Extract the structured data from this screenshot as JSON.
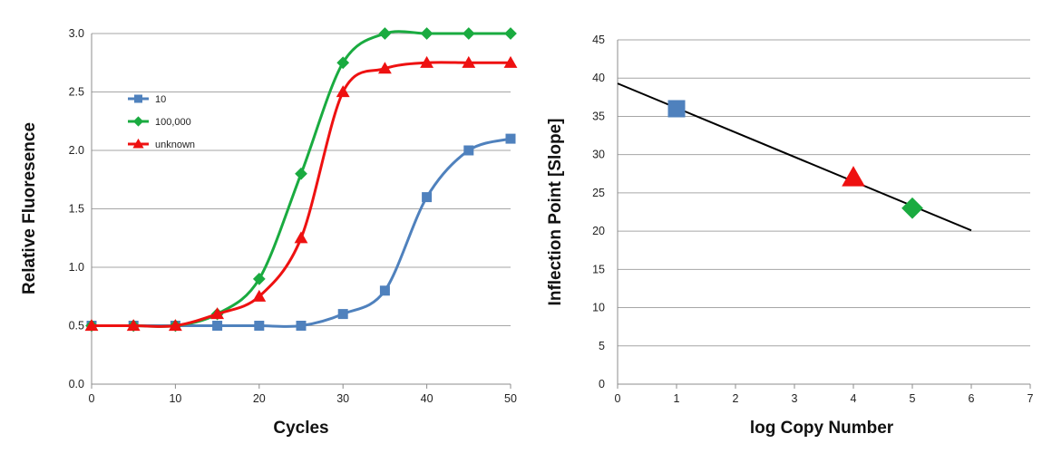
{
  "chart_data": [
    {
      "type": "line",
      "title": "",
      "xlabel": "Cycles",
      "ylabel": "Relative Fluoresence",
      "xlim": [
        0,
        50
      ],
      "ylim": [
        0,
        3.0
      ],
      "xticks": [
        0,
        10,
        20,
        30,
        40,
        50
      ],
      "yticks": [
        "0.0",
        "0.5",
        "1.0",
        "1.5",
        "2.0",
        "2.5",
        "3.0"
      ],
      "grid": "horizontal",
      "legend_position": "upper-left inside plot",
      "series": [
        {
          "name": "10",
          "color": "#4f81bd",
          "marker": "square",
          "x": [
            0,
            5,
            10,
            15,
            20,
            25,
            30,
            35,
            40,
            45,
            50
          ],
          "values": [
            0.5,
            0.5,
            0.5,
            0.5,
            0.5,
            0.5,
            0.6,
            0.8,
            1.6,
            2.0,
            2.1
          ]
        },
        {
          "name": "100,000",
          "color": "#1aab40",
          "marker": "diamond",
          "x": [
            0,
            5,
            10,
            15,
            20,
            25,
            30,
            35,
            40,
            45,
            50
          ],
          "values": [
            0.5,
            0.5,
            0.5,
            0.6,
            0.9,
            1.8,
            2.75,
            3.0,
            3.0,
            3.0,
            3.0
          ]
        },
        {
          "name": "unknown",
          "color": "#ee1111",
          "marker": "triangle",
          "x": [
            0,
            5,
            10,
            15,
            20,
            25,
            30,
            35,
            40,
            45,
            50
          ],
          "values": [
            0.5,
            0.5,
            0.5,
            0.6,
            0.75,
            1.25,
            2.5,
            2.7,
            2.75,
            2.75,
            2.75
          ]
        }
      ]
    },
    {
      "type": "scatter",
      "title": "",
      "xlabel": "log Copy Number",
      "ylabel": "Inflection Point [Slope]",
      "xlim": [
        0,
        7
      ],
      "ylim": [
        0,
        45
      ],
      "xticks": [
        0,
        1,
        2,
        3,
        4,
        5,
        6,
        7
      ],
      "yticks": [
        0,
        5,
        10,
        15,
        20,
        25,
        30,
        35,
        40,
        45
      ],
      "grid": "horizontal",
      "trendline": {
        "x": [
          0,
          6
        ],
        "y": [
          39.3,
          20.1
        ],
        "color": "#000000"
      },
      "points": [
        {
          "x": 1,
          "y": 36,
          "color": "#4f81bd",
          "marker": "square"
        },
        {
          "x": 4,
          "y": 27,
          "color": "#ee1111",
          "marker": "triangle"
        },
        {
          "x": 5,
          "y": 23,
          "color": "#1aab40",
          "marker": "diamond"
        }
      ]
    }
  ]
}
